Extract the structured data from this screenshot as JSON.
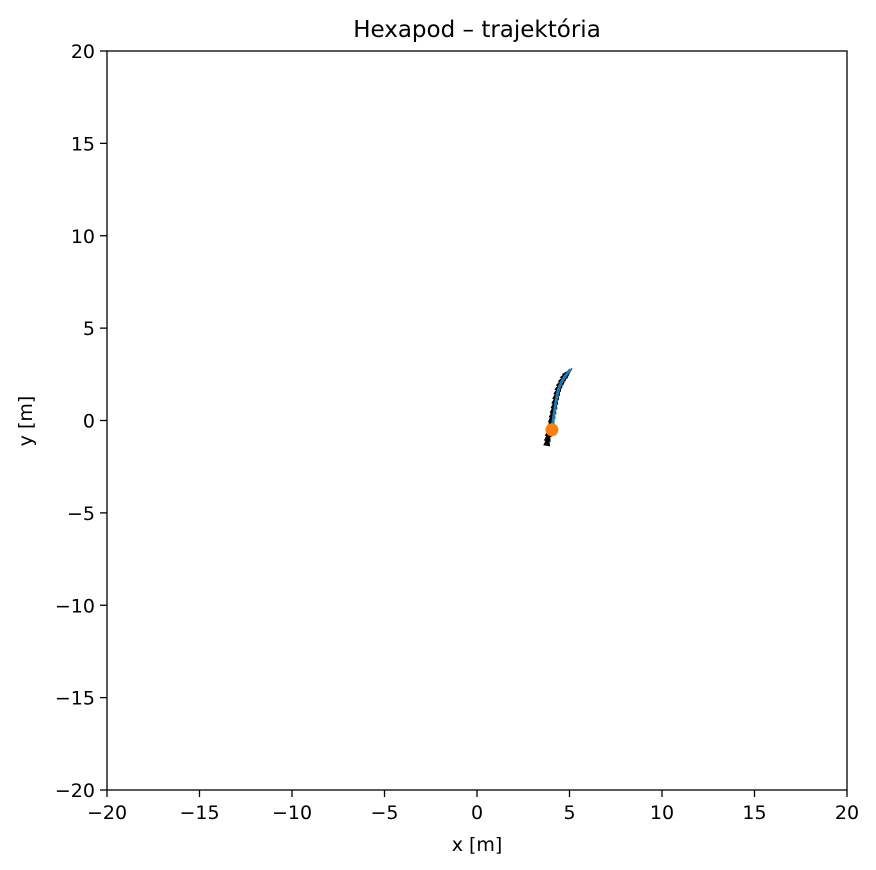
{
  "chart_data": {
    "type": "line",
    "title": "Hexapod – trajektória",
    "xlabel": "x [m]",
    "ylabel": "y [m]",
    "xlim": [
      -20,
      20
    ],
    "ylim": [
      -20,
      20
    ],
    "grid": false,
    "x_ticks": [
      -20,
      -15,
      -10,
      -5,
      0,
      5,
      10,
      15,
      20
    ],
    "y_ticks": [
      -20,
      -15,
      -10,
      -5,
      0,
      5,
      10,
      15,
      20
    ],
    "x_tick_labels": [
      "−20",
      "−15",
      "−10",
      "−5",
      "0",
      "5",
      "10",
      "15",
      "20"
    ],
    "y_tick_labels": [
      "−20",
      "−15",
      "−10",
      "−5",
      "0",
      "5",
      "10",
      "15",
      "20"
    ],
    "series": [
      {
        "kind": "heading-arrows",
        "color": "#000000",
        "points": [
          [
            3.82,
            -1.05
          ],
          [
            3.86,
            -0.8
          ],
          [
            3.92,
            -0.55
          ],
          [
            3.98,
            -0.3
          ],
          [
            4.03,
            -0.05
          ],
          [
            4.07,
            0.2
          ],
          [
            4.12,
            0.45
          ],
          [
            4.17,
            0.7
          ],
          [
            4.22,
            0.95
          ],
          [
            4.27,
            1.2
          ],
          [
            4.33,
            1.45
          ],
          [
            4.4,
            1.68
          ],
          [
            4.48,
            1.9
          ],
          [
            4.58,
            2.1
          ],
          [
            4.7,
            2.3
          ],
          [
            4.82,
            2.48
          ],
          [
            4.95,
            2.62
          ]
        ]
      },
      {
        "kind": "path",
        "color": "#1f77b4",
        "x": [
          4.05,
          4.1,
          4.16,
          4.22,
          4.28,
          4.35,
          4.43,
          4.53,
          4.65,
          4.78,
          4.92,
          5.02
        ],
        "y": [
          -0.5,
          -0.1,
          0.3,
          0.7,
          1.1,
          1.45,
          1.75,
          2.0,
          2.22,
          2.42,
          2.6,
          2.72
        ]
      },
      {
        "kind": "marker",
        "color": "#ff7f0e",
        "x": [
          4.05
        ],
        "y": [
          -0.5
        ]
      }
    ]
  }
}
